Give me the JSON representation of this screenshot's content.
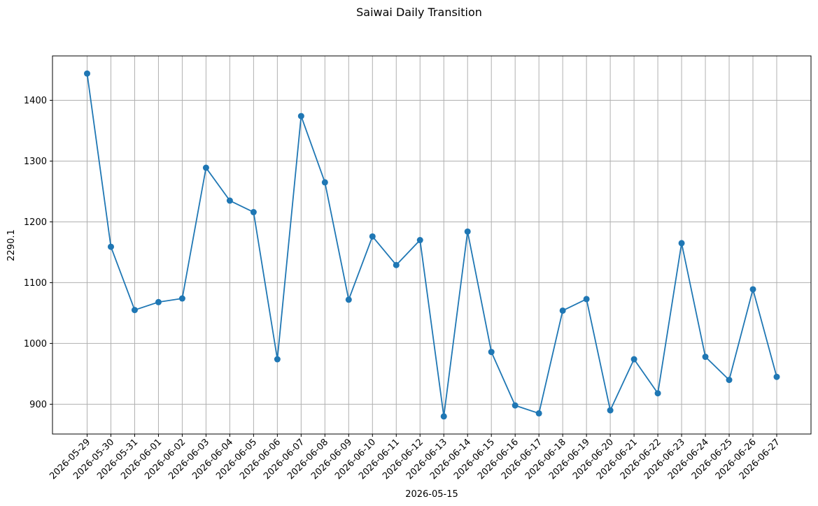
{
  "chart_data": {
    "type": "line",
    "title": "Saiwai Daily Transition",
    "xlabel": "2026-05-15",
    "ylabel": "2290.1",
    "x": [
      "2026-05-29",
      "2026-05-30",
      "2026-05-31",
      "2026-06-01",
      "2026-06-02",
      "2026-06-03",
      "2026-06-04",
      "2026-06-05",
      "2026-06-06",
      "2026-06-07",
      "2026-06-08",
      "2026-06-09",
      "2026-06-10",
      "2026-06-11",
      "2026-06-12",
      "2026-06-13",
      "2026-06-14",
      "2026-06-15",
      "2026-06-16",
      "2026-06-17",
      "2026-06-18",
      "2026-06-19",
      "2026-06-20",
      "2026-06-21",
      "2026-06-22",
      "2026-06-23",
      "2026-06-24",
      "2026-06-25",
      "2026-06-26",
      "2026-06-27"
    ],
    "series": [
      {
        "color": "#1f77b4",
        "values": [
          1444,
          1159,
          1055,
          1068,
          1074,
          1289,
          1235,
          1216,
          974,
          1374,
          1265,
          1072,
          1176,
          1129,
          1170,
          880,
          1184,
          986,
          898,
          885,
          1054,
          1073,
          890,
          974,
          918,
          1165,
          978,
          940,
          1089,
          945
        ]
      }
    ],
    "ylim": [
      851,
      1473
    ],
    "yticks": [
      900,
      1000,
      1100,
      1200,
      1300,
      1400
    ],
    "grid": true,
    "legend": "none"
  }
}
